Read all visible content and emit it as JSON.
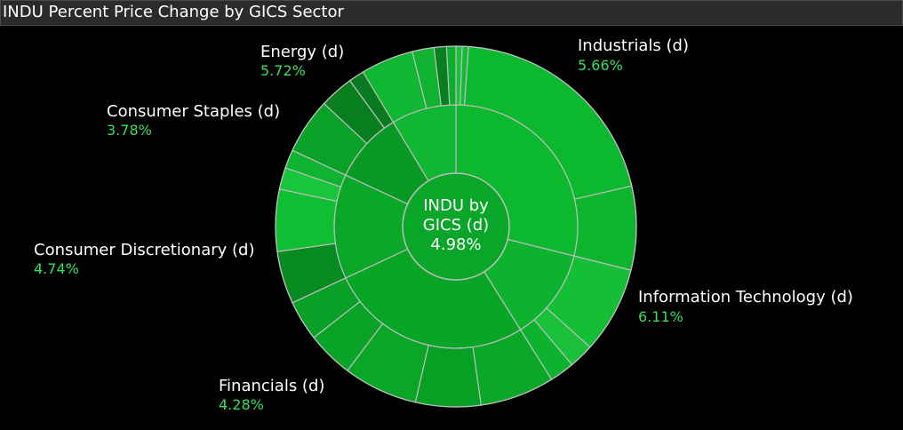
{
  "title": "INDU Percent Price Change by GICS Sector",
  "center": {
    "line1": "INDU by",
    "line2": "GICS (d)",
    "value": "4.98%"
  },
  "colors": {
    "background": "#000000",
    "label_value": "#33e05a",
    "label_name": "#ffffff",
    "separator": "#bdbdbd"
  },
  "chart_data": {
    "type": "sunburst",
    "title": "INDU Percent Price Change by GICS Sector",
    "root": {
      "label": "INDU by GICS (d)",
      "value": 4.98,
      "value_label": "4.98%"
    },
    "sectors": [
      {
        "name": "Industrials (d)",
        "value_label": "5.66%",
        "value": 5.66,
        "start_deg": 0,
        "end_deg": 104,
        "color": "#0cb82e",
        "sub": [
          {
            "start_deg": 0,
            "end_deg": 2,
            "color": "#17c238"
          },
          {
            "start_deg": 2,
            "end_deg": 4,
            "color": "#12bb33"
          },
          {
            "start_deg": 4,
            "end_deg": 77,
            "color": "#0cb82e"
          },
          {
            "start_deg": 77,
            "end_deg": 104,
            "color": "#0db52f"
          }
        ]
      },
      {
        "name": "Information Technology (d)",
        "value_label": "6.11%",
        "value": 6.11,
        "start_deg": 104,
        "end_deg": 148,
        "color": "#0db32f",
        "sub": [
          {
            "start_deg": 104,
            "end_deg": 132,
            "color": "#14bf36"
          },
          {
            "start_deg": 132,
            "end_deg": 140,
            "color": "#1ac03a"
          },
          {
            "start_deg": 140,
            "end_deg": 148,
            "color": "#0db32f"
          }
        ]
      },
      {
        "name": "Financials (d)",
        "value_label": "4.28%",
        "value": 4.28,
        "start_deg": 148,
        "end_deg": 245,
        "color": "#08a526",
        "sub": [
          {
            "start_deg": 148,
            "end_deg": 172,
            "color": "#0aa829"
          },
          {
            "start_deg": 172,
            "end_deg": 193,
            "color": "#089f25"
          },
          {
            "start_deg": 193,
            "end_deg": 217,
            "color": "#0aa628"
          },
          {
            "start_deg": 217,
            "end_deg": 232,
            "color": "#09a327"
          },
          {
            "start_deg": 232,
            "end_deg": 245,
            "color": "#08a026"
          }
        ]
      },
      {
        "name": "Consumer Discretionary (d)",
        "value_label": "4.74%",
        "value": 4.74,
        "start_deg": 245,
        "end_deg": 295,
        "color": "#09a828",
        "sub": [
          {
            "start_deg": 245,
            "end_deg": 262,
            "color": "#078a20"
          },
          {
            "start_deg": 262,
            "end_deg": 282,
            "color": "#10be33"
          },
          {
            "start_deg": 282,
            "end_deg": 289,
            "color": "#18c53b"
          },
          {
            "start_deg": 289,
            "end_deg": 295,
            "color": "#0eb430"
          }
        ]
      },
      {
        "name": "Consumer Staples (d)",
        "value_label": "3.78%",
        "value": 3.78,
        "start_deg": 295,
        "end_deg": 329,
        "color": "#089924",
        "sub": [
          {
            "start_deg": 295,
            "end_deg": 313,
            "color": "#09a127"
          },
          {
            "start_deg": 313,
            "end_deg": 324,
            "color": "#077f1f"
          },
          {
            "start_deg": 324,
            "end_deg": 329,
            "color": "#087a1f"
          }
        ]
      },
      {
        "name": "Energy (d)",
        "value_label": "5.72%",
        "value": 5.72,
        "start_deg": 329,
        "end_deg": 360,
        "color": "#0fb732",
        "sub": [
          {
            "start_deg": 329,
            "end_deg": 346,
            "color": "#0fb732"
          },
          {
            "start_deg": 346,
            "end_deg": 353,
            "color": "#0fb32f"
          },
          {
            "start_deg": 353,
            "end_deg": 357,
            "color": "#077f1f"
          },
          {
            "start_deg": 357,
            "end_deg": 360,
            "color": "#0cae2d"
          }
        ]
      }
    ]
  }
}
